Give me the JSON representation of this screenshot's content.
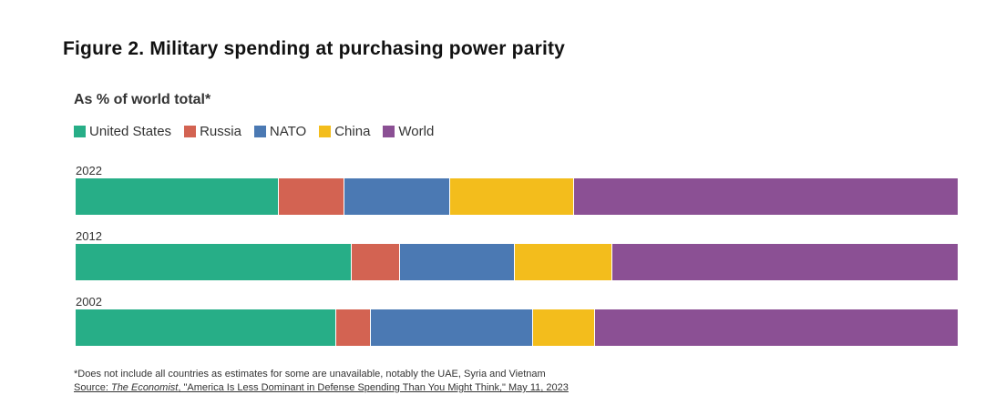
{
  "chart_data": {
    "type": "bar",
    "orientation": "horizontal",
    "stacked": true,
    "title": "Figure 2. Military spending at purchasing power parity",
    "subtitle": "As % of world total*",
    "categories": [
      "2022",
      "2012",
      "2002"
    ],
    "series": [
      {
        "name": "United States",
        "color": "#27ae87",
        "values": [
          23.0,
          31.3,
          29.5
        ]
      },
      {
        "name": "Russia",
        "color": "#d36352",
        "values": [
          7.5,
          5.5,
          4.0
        ]
      },
      {
        "name": "NATO",
        "color": "#4b79b3",
        "values": [
          12.0,
          13.0,
          18.4
        ]
      },
      {
        "name": "China",
        "color": "#f3bd1c",
        "values": [
          14.0,
          11.0,
          7.0
        ]
      },
      {
        "name": "World",
        "color": "#8b5094",
        "values": [
          43.5,
          39.2,
          41.1
        ]
      }
    ],
    "xlim": [
      0,
      100
    ],
    "grid": false,
    "legend_position": "top-left",
    "footnote": "*Does not include all countries as estimates for some are unavailable, notably the UAE, Syria and Vietnam",
    "source": {
      "prefix": "Source: ",
      "publication": "The Economist",
      "rest": ", \"America Is Less Dominant in Defense Spending Than You Might Think,\" May 11, 2023"
    }
  }
}
